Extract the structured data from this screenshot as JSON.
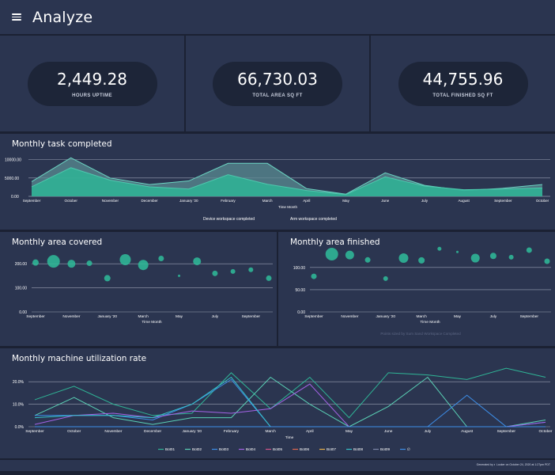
{
  "header": {
    "title": "Analyze",
    "menu_icon": "hamburger-menu-icon"
  },
  "kpis": [
    {
      "value": "2,449.28",
      "label": "HOURS UPTIME"
    },
    {
      "value": "66,730.03",
      "label": "TOTAL AREA SQ FT"
    },
    {
      "value": "44,755.96",
      "label": "TOTAL FINISHED SQ FT"
    }
  ],
  "colors": {
    "background": "#1b2133",
    "card": "#2b3550",
    "pill": "#1d2538",
    "teal": "#2fb596",
    "teal_light": "#4ec7ad",
    "blue": "#3d8ee8",
    "purple": "#a463e6"
  },
  "tasks_chart": {
    "title": "Monthly task completed",
    "chart_data": {
      "type": "area",
      "title": "Monthly task completed",
      "xlabel": "Time Month",
      "ylabel": "",
      "categories": [
        "September",
        "October",
        "November",
        "December",
        "January '20",
        "February",
        "March",
        "April",
        "May",
        "June",
        "July",
        "August",
        "September",
        "October"
      ],
      "yticks": [
        "10000.00",
        "5000.00",
        "0.00"
      ],
      "ylim": [
        0,
        11000
      ],
      "series": [
        {
          "name": "Device workspace completed",
          "values": [
            4000,
            10500,
            5000,
            3200,
            4200,
            9000,
            9000,
            2100,
            600,
            6400,
            3000,
            1600,
            2200,
            3200
          ]
        },
        {
          "name": "Arm workspace completed",
          "values": [
            2600,
            7800,
            4400,
            2600,
            2000,
            5900,
            3300,
            1600,
            500,
            5300,
            2800,
            1800,
            2000,
            2300
          ]
        }
      ],
      "legend": [
        "Device workspace completed",
        "Arm workspace completed"
      ]
    }
  },
  "area_covered_chart": {
    "title": "Monthly area covered",
    "chart_data": {
      "type": "scatter",
      "title": "Monthly area covered",
      "xlabel": "Time Month",
      "xticks": [
        "September",
        "November",
        "January '20",
        "March",
        "May",
        "July",
        "September"
      ],
      "yticks": [
        "200.00",
        "100.00",
        "0.00"
      ],
      "ylim": [
        0,
        240
      ],
      "points": [
        {
          "x": 0,
          "y": 205,
          "size": 4
        },
        {
          "x": 1,
          "y": 210,
          "size": 8
        },
        {
          "x": 2,
          "y": 200,
          "size": 5
        },
        {
          "x": 3,
          "y": 202,
          "size": 3.5
        },
        {
          "x": 4,
          "y": 140,
          "size": 4
        },
        {
          "x": 5,
          "y": 217,
          "size": 7
        },
        {
          "x": 6,
          "y": 195,
          "size": 6.5
        },
        {
          "x": 7,
          "y": 222,
          "size": 3.5
        },
        {
          "x": 8,
          "y": 150,
          "size": 1.5
        },
        {
          "x": 9,
          "y": 210,
          "size": 5
        },
        {
          "x": 10,
          "y": 160,
          "size": 3.5
        },
        {
          "x": 11,
          "y": 168,
          "size": 3
        },
        {
          "x": 12,
          "y": 175,
          "size": 3
        },
        {
          "x": 13,
          "y": 140,
          "size": 3.5
        }
      ]
    }
  },
  "area_finished_chart": {
    "title": "Monthly area finished",
    "chart_data": {
      "type": "scatter",
      "title": "Monthly area finished",
      "xlabel": "Time Month",
      "xticks": [
        "September",
        "November",
        "January '20",
        "March",
        "May",
        "July",
        "September"
      ],
      "yticks": [
        "100.00",
        "50.00",
        "0.00"
      ],
      "ylim": [
        0,
        130
      ],
      "legend_text": "Points sized by Sum Sand Workspace Completed",
      "points": [
        {
          "x": 0,
          "y": 80,
          "size": 3.5
        },
        {
          "x": 1,
          "y": 130,
          "size": 8
        },
        {
          "x": 2,
          "y": 128,
          "size": 5.5
        },
        {
          "x": 3,
          "y": 117,
          "size": 3.5
        },
        {
          "x": 4,
          "y": 75,
          "size": 3
        },
        {
          "x": 5,
          "y": 121,
          "size": 6
        },
        {
          "x": 6,
          "y": 116,
          "size": 4
        },
        {
          "x": 7,
          "y": 142,
          "size": 2.5
        },
        {
          "x": 8,
          "y": 135,
          "size": 1.5
        },
        {
          "x": 9,
          "y": 121,
          "size": 5.5
        },
        {
          "x": 10,
          "y": 126,
          "size": 4
        },
        {
          "x": 11,
          "y": 123,
          "size": 3
        },
        {
          "x": 12,
          "y": 139,
          "size": 3.5
        },
        {
          "x": 13,
          "y": 114,
          "size": 3.5
        }
      ]
    }
  },
  "utilization_chart": {
    "title": "Monthly machine utilization rate",
    "chart_data": {
      "type": "line",
      "title": "Monthly machine utilization rate",
      "xlabel": "Time",
      "categories": [
        "September",
        "October",
        "November",
        "December",
        "January '20",
        "February",
        "March",
        "April",
        "May",
        "June",
        "July",
        "August",
        "September",
        "October"
      ],
      "yticks": [
        "20.0%",
        "10.0%",
        "0.0%"
      ],
      "ylim": [
        0,
        25
      ],
      "series": [
        {
          "name": "Bot01",
          "color": "#2fb596",
          "values": [
            12,
            18,
            10,
            5,
            6,
            24,
            8,
            22,
            4,
            24,
            23,
            21,
            26,
            22
          ]
        },
        {
          "name": "Bot02",
          "color": "#5ad1b5",
          "values": [
            5,
            13,
            4,
            1,
            4,
            4,
            22,
            10,
            0,
            9,
            22,
            0,
            0,
            3
          ]
        },
        {
          "name": "Bot03",
          "color": "#3d8ee8",
          "values": [
            5,
            5,
            5,
            3,
            10,
            21,
            0,
            0,
            0,
            0,
            0,
            14,
            0,
            2
          ]
        },
        {
          "name": "Bot04",
          "color": "#a463e6",
          "values": [
            1,
            5,
            6,
            4,
            7,
            6,
            8,
            19,
            0,
            0,
            0,
            0,
            0,
            2
          ]
        },
        {
          "name": "Bot05",
          "color": "#d4568a",
          "values": [
            0,
            0,
            0,
            0,
            0,
            0,
            0,
            0,
            0,
            0,
            0,
            0,
            0,
            0
          ]
        },
        {
          "name": "Bot06",
          "color": "#e0684f",
          "values": [
            0,
            0,
            0,
            0,
            0,
            0,
            0,
            0,
            0,
            0,
            0,
            0,
            0,
            0
          ]
        },
        {
          "name": "Bot07",
          "color": "#e8b04a",
          "values": [
            0,
            0,
            0,
            0,
            0,
            0,
            0,
            0,
            0,
            0,
            0,
            0,
            0,
            0
          ]
        },
        {
          "name": "Bot08",
          "color": "#36c2c9",
          "values": [
            4,
            5,
            5,
            4,
            10,
            22,
            0,
            0,
            0,
            0,
            0,
            0,
            0,
            0
          ]
        },
        {
          "name": "Bot09",
          "color": "#7d86a8",
          "values": [
            0,
            0,
            0,
            0,
            0,
            0,
            0,
            0,
            0,
            0,
            0,
            0,
            0,
            0
          ]
        },
        {
          "name": "∅",
          "color": "#3d8ee8",
          "values": [
            0,
            0,
            0,
            0,
            0,
            0,
            0,
            0,
            0,
            0,
            0,
            0,
            0,
            0
          ]
        }
      ]
    }
  },
  "footer": {
    "note": "Generated by ◐ Looker on October 24, 2020 at 1:27pm PDT"
  }
}
